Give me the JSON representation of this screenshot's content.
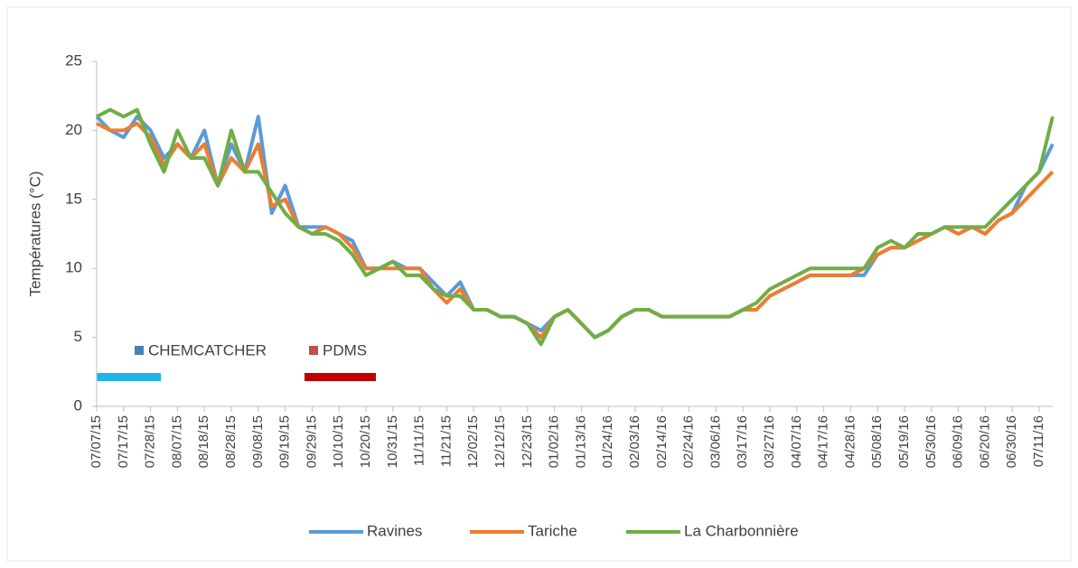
{
  "chart_data": {
    "type": "line",
    "y_label": "Températures (°C)",
    "categories": [
      "07/07/15",
      null,
      "07/17/15",
      null,
      "07/28/15",
      null,
      "08/07/15",
      null,
      "08/18/15",
      null,
      "08/28/15",
      null,
      "09/08/15",
      null,
      "09/19/15",
      null,
      "09/29/15",
      null,
      "10/10/15",
      null,
      "10/20/15",
      null,
      "10/31/15",
      null,
      "11/11/15",
      null,
      "11/21/15",
      null,
      "12/02/15",
      null,
      "12/12/15",
      null,
      "12/23/15",
      null,
      "01/02/16",
      null,
      "01/13/16",
      null,
      "01/24/16",
      null,
      "02/03/16",
      null,
      "02/14/16",
      null,
      "02/24/16",
      null,
      "03/06/16",
      null,
      "03/17/16",
      null,
      "03/27/16",
      null,
      "04/07/16",
      null,
      "04/17/16",
      null,
      "04/28/16",
      null,
      "05/08/16",
      null,
      "05/19/16",
      null,
      "05/30/16",
      null,
      "06/09/16",
      null,
      "06/20/16",
      null,
      "06/30/16",
      null,
      "07/11/16",
      null
    ],
    "series": [
      {
        "name": "Ravines",
        "color": "#5b9bd5",
        "values": [
          21,
          20,
          19.5,
          21,
          20,
          18,
          19,
          18,
          20,
          16,
          19,
          17,
          21,
          14,
          16,
          13,
          13,
          13,
          12.5,
          12,
          10,
          10,
          10.5,
          10,
          10,
          9,
          8,
          9,
          7,
          7,
          6.5,
          6.5,
          6,
          5.5,
          6.5,
          7,
          6,
          5,
          5.5,
          6.5,
          7,
          7,
          6.5,
          6.5,
          6.5,
          6.5,
          6.5,
          6.5,
          7,
          7,
          8,
          8.5,
          9,
          9.5,
          9.5,
          9.5,
          9.5,
          9.5,
          11,
          11.5,
          11.5,
          12,
          12.5,
          13,
          12.5,
          13,
          12.5,
          13.5,
          14,
          16,
          17,
          19
        ]
      },
      {
        "name": "Tariche",
        "color": "#ed7d31",
        "values": [
          20.5,
          20,
          20,
          20.5,
          19.5,
          17.5,
          19,
          18,
          19,
          16,
          18,
          17,
          19,
          14.5,
          15,
          13,
          12.5,
          13,
          12.5,
          11.5,
          10,
          10,
          10,
          10,
          10,
          8.5,
          7.5,
          8.5,
          7,
          7,
          6.5,
          6.5,
          6,
          5,
          6.5,
          7,
          6,
          5,
          5.5,
          6.5,
          7,
          7,
          6.5,
          6.5,
          6.5,
          6.5,
          6.5,
          6.5,
          7,
          7,
          8,
          8.5,
          9,
          9.5,
          9.5,
          9.5,
          9.5,
          10,
          11,
          11.5,
          11.5,
          12,
          12.5,
          13,
          12.5,
          13,
          12.5,
          13.5,
          14,
          15,
          16,
          17
        ]
      },
      {
        "name": "La Charbonnière",
        "color": "#70ad47",
        "values": [
          21,
          21.5,
          21,
          21.5,
          19,
          17,
          20,
          18,
          18,
          16,
          20,
          17,
          17,
          15.5,
          14,
          13,
          12.5,
          12.5,
          12,
          11,
          9.5,
          10,
          10.5,
          9.5,
          9.5,
          8.5,
          8,
          8,
          7,
          7,
          6.5,
          6.5,
          6,
          4.5,
          6.5,
          7,
          6,
          5,
          5.5,
          6.5,
          7,
          7,
          6.5,
          6.5,
          6.5,
          6.5,
          6.5,
          6.5,
          7,
          7.5,
          8.5,
          9,
          9.5,
          10,
          10,
          10,
          10,
          10,
          11.5,
          12,
          11.5,
          12.5,
          12.5,
          13,
          13,
          13,
          13,
          14,
          15,
          16,
          17,
          21
        ]
      }
    ],
    "annotations": [
      "CHEMCATCHER",
      "PDMS"
    ],
    "ylim": [
      0,
      25
    ],
    "yticks": [
      0,
      5,
      10,
      15,
      20,
      25
    ],
    "grid": false,
    "legend": "bottom"
  }
}
